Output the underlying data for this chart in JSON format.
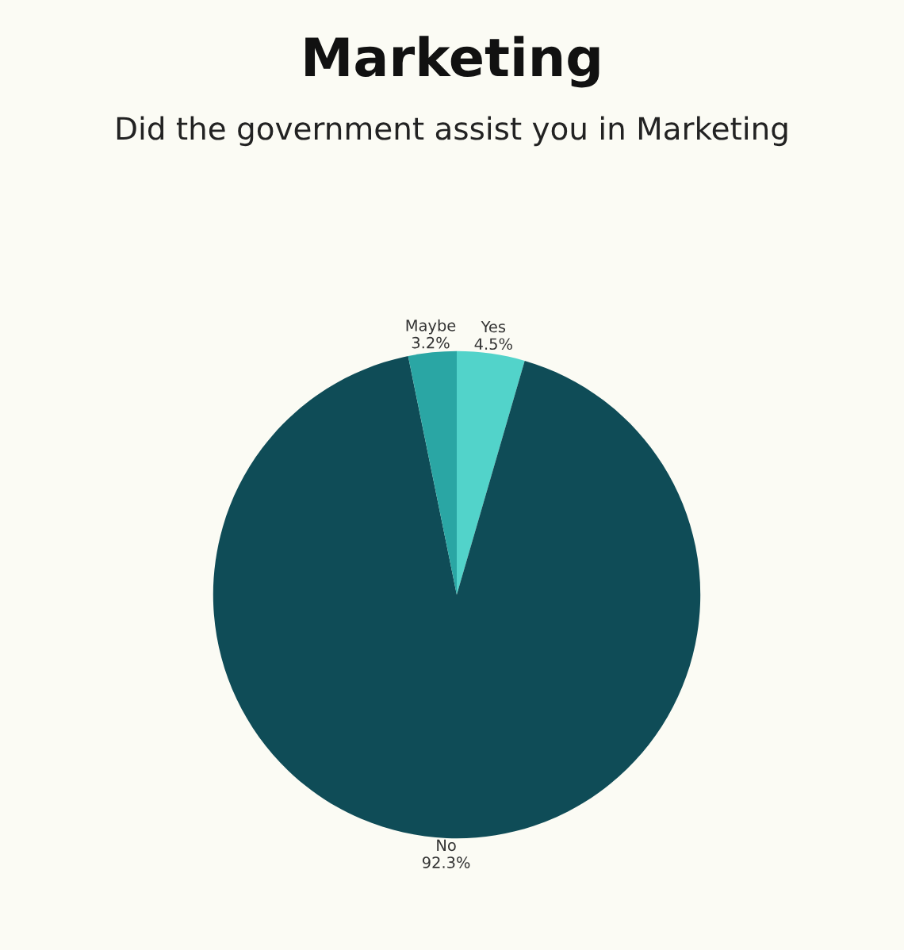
{
  "chart_data": {
    "type": "pie",
    "title": "Marketing",
    "subtitle": "Did the government assist you in Marketing",
    "categories": [
      "Yes",
      "No",
      "Maybe"
    ],
    "values": [
      4.5,
      92.3,
      3.2
    ],
    "value_labels": [
      "4.5%",
      "92.3%",
      "3.2%"
    ],
    "colors": [
      "#52d3ca",
      "#0f4c57",
      "#2aa6a4"
    ]
  }
}
